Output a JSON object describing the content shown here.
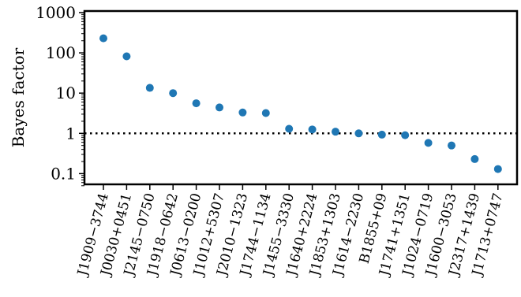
{
  "chart_data": {
    "type": "scatter",
    "xlabel": "",
    "ylabel": "Bayes factor",
    "yscale": "log",
    "ylim": [
      0.05,
      1000
    ],
    "yticks": [
      0.1,
      1,
      10,
      100,
      1000
    ],
    "ytick_labels": [
      "0.1",
      "1",
      "10",
      "100",
      "1000"
    ],
    "reference_line": {
      "y": 1,
      "style": "dotted",
      "color": "#000000"
    },
    "marker_color": "#1f77b4",
    "categories": [
      "J1909−3744",
      "J0030+0451",
      "J2145−0750",
      "J1918−0642",
      "J0613−0200",
      "J1012+5307",
      "J2010−1323",
      "J1744−1134",
      "J1455−3330",
      "J1640+2224",
      "J1853+1303",
      "J1614−2230",
      "B1855+09",
      "J1741+1351",
      "J1024−0719",
      "J1600−3053",
      "J2317+1439",
      "J1713+0747"
    ],
    "values": [
      230,
      82,
      13.5,
      10,
      5.6,
      4.4,
      3.3,
      3.2,
      1.3,
      1.25,
      1.1,
      1.0,
      0.93,
      0.9,
      0.58,
      0.5,
      0.23,
      0.13
    ],
    "grid": false,
    "legend": "none"
  }
}
